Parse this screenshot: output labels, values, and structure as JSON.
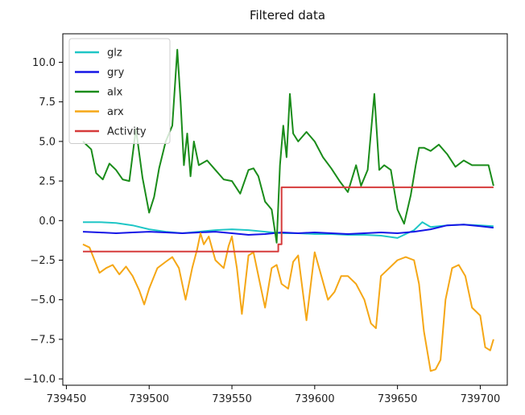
{
  "chart_data": {
    "type": "line",
    "title": "Filtered data",
    "xlabel": "",
    "ylabel": "",
    "xlim": [
      739460,
      739710
    ],
    "ylim": [
      -10.4,
      11.8
    ],
    "xticks": [
      739450,
      739500,
      739550,
      739600,
      739650,
      739700
    ],
    "yticks": [
      -10.0,
      -7.5,
      -5.0,
      -2.5,
      0.0,
      2.5,
      5.0,
      7.5,
      10.0
    ],
    "ytick_labels": [
      "−10.0",
      "−7.5",
      "−5.0",
      "−2.5",
      "0.0",
      "2.5",
      "5.0",
      "7.5",
      "10.0"
    ],
    "grid": false,
    "legend_position": "top-left",
    "series": [
      {
        "name": "glz",
        "color": "#1fc6c6",
        "x": [
          739460,
          739470,
          739480,
          739490,
          739500,
          739510,
          739520,
          739530,
          739540,
          739550,
          739560,
          739570,
          739580,
          739590,
          739600,
          739610,
          739620,
          739630,
          739640,
          739650,
          739660,
          739665,
          739670,
          739680,
          739690,
          739700,
          739708
        ],
        "y": [
          -0.1,
          -0.1,
          -0.15,
          -0.3,
          -0.55,
          -0.7,
          -0.8,
          -0.7,
          -0.6,
          -0.55,
          -0.6,
          -0.7,
          -0.8,
          -0.8,
          -0.85,
          -0.85,
          -0.9,
          -0.9,
          -0.95,
          -1.1,
          -0.6,
          -0.1,
          -0.4,
          -0.3,
          -0.25,
          -0.3,
          -0.35
        ]
      },
      {
        "name": "gry",
        "color": "#1515e6",
        "x": [
          739460,
          739470,
          739480,
          739490,
          739500,
          739510,
          739520,
          739530,
          739540,
          739550,
          739560,
          739570,
          739580,
          739590,
          739600,
          739610,
          739620,
          739630,
          739640,
          739650,
          739660,
          739670,
          739680,
          739690,
          739700,
          739708
        ],
        "y": [
          -0.7,
          -0.75,
          -0.8,
          -0.75,
          -0.7,
          -0.75,
          -0.8,
          -0.75,
          -0.7,
          -0.8,
          -0.9,
          -0.85,
          -0.75,
          -0.8,
          -0.75,
          -0.8,
          -0.85,
          -0.8,
          -0.75,
          -0.8,
          -0.7,
          -0.55,
          -0.3,
          -0.25,
          -0.35,
          -0.45
        ]
      },
      {
        "name": "alx",
        "color": "#1a8c1a",
        "x": [
          739460,
          739465,
          739468,
          739472,
          739476,
          739480,
          739484,
          739488,
          739492,
          739496,
          739500,
          739503,
          739506,
          739510,
          739514,
          739517,
          739519,
          739521,
          739523,
          739525,
          739527,
          739530,
          739535,
          739540,
          739545,
          739550,
          739555,
          739560,
          739563,
          739566,
          739570,
          739574,
          739577,
          739579,
          739581,
          739583,
          739585,
          739587,
          739590,
          739595,
          739600,
          739605,
          739610,
          739615,
          739620,
          739625,
          739628,
          739632,
          739636,
          739639,
          739642,
          739646,
          739650,
          739654,
          739658,
          739661,
          739663,
          739666,
          739670,
          739675,
          739680,
          739685,
          739690,
          739695,
          739700,
          739705,
          739708
        ],
        "y": [
          5.0,
          4.5,
          3.0,
          2.6,
          3.6,
          3.2,
          2.6,
          2.5,
          5.8,
          2.7,
          0.5,
          1.5,
          3.3,
          5.0,
          6.0,
          10.8,
          7.5,
          3.5,
          5.5,
          2.8,
          5.0,
          3.5,
          3.8,
          3.2,
          2.6,
          2.5,
          1.7,
          3.2,
          3.3,
          2.8,
          1.2,
          0.7,
          -1.4,
          3.5,
          6.0,
          4.0,
          8.0,
          5.5,
          5.0,
          5.6,
          5.0,
          4.0,
          3.3,
          2.5,
          1.8,
          3.5,
          2.2,
          3.2,
          8.0,
          3.2,
          3.5,
          3.2,
          0.7,
          -0.2,
          1.6,
          3.5,
          4.6,
          4.6,
          4.4,
          4.8,
          4.2,
          3.4,
          3.8,
          3.5,
          3.5,
          3.5,
          2.2
        ]
      },
      {
        "name": "arx",
        "color": "#f5a716",
        "x": [
          739460,
          739464,
          739467,
          739470,
          739474,
          739478,
          739482,
          739486,
          739490,
          739494,
          739497,
          739500,
          739505,
          739510,
          739514,
          739518,
          739522,
          739526,
          739529,
          739531,
          739533,
          739536,
          739540,
          739545,
          739548,
          739550,
          739553,
          739556,
          739560,
          739563,
          739567,
          739570,
          739574,
          739577,
          739580,
          739584,
          739587,
          739590,
          739595,
          739600,
          739604,
          739608,
          739612,
          739616,
          739620,
          739625,
          739630,
          739634,
          739637,
          739640,
          739645,
          739650,
          739655,
          739660,
          739663,
          739666,
          739670,
          739673,
          739676,
          739679,
          739683,
          739687,
          739691,
          739695,
          739700,
          739703,
          739706,
          739708
        ],
        "y": [
          -1.5,
          -1.7,
          -2.5,
          -3.3,
          -3.0,
          -2.8,
          -3.4,
          -2.9,
          -3.5,
          -4.4,
          -5.3,
          -4.3,
          -3.0,
          -2.6,
          -2.3,
          -3.0,
          -5.0,
          -3.0,
          -1.8,
          -0.8,
          -1.5,
          -1.0,
          -2.5,
          -3.0,
          -1.6,
          -1.0,
          -3.0,
          -5.9,
          -2.2,
          -2.0,
          -4.0,
          -5.5,
          -3.0,
          -2.8,
          -4.0,
          -4.3,
          -2.6,
          -2.2,
          -6.3,
          -2.0,
          -3.5,
          -5.0,
          -4.5,
          -3.5,
          -3.5,
          -4.0,
          -5.0,
          -6.5,
          -6.8,
          -3.5,
          -3.0,
          -2.5,
          -2.3,
          -2.5,
          -4.0,
          -7.0,
          -9.5,
          -9.4,
          -8.8,
          -5.0,
          -3.0,
          -2.8,
          -3.5,
          -5.5,
          -6.0,
          -8.0,
          -8.2,
          -7.5
        ]
      },
      {
        "name": "Activity",
        "color": "#d63b3b",
        "x": [
          739460,
          739578,
          739578,
          739580,
          739580,
          739708
        ],
        "y": [
          -1.95,
          -1.95,
          -1.5,
          -1.5,
          2.1,
          2.1
        ]
      }
    ]
  }
}
